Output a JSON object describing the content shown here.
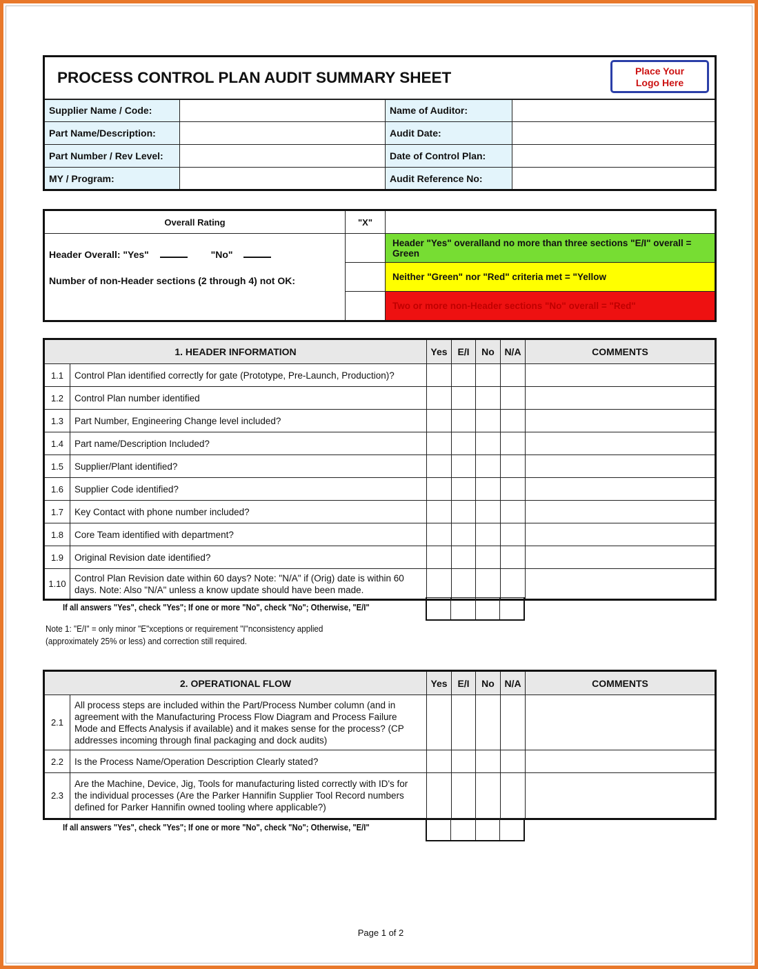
{
  "title": "PROCESS CONTROL PLAN AUDIT SUMMARY SHEET",
  "logo": "Place Your Logo Here",
  "info": [
    {
      "label": "Supplier Name / Code:",
      "value": "",
      "label2": "Name of Auditor:",
      "value2": ""
    },
    {
      "label": "Part Name/Description:",
      "value": "",
      "label2": "Audit Date:",
      "value2": ""
    },
    {
      "label": "Part Number / Rev Level:",
      "value": "",
      "label2": "Date of Control Plan:",
      "value2": ""
    },
    {
      "label": "MY / Program:",
      "value": "",
      "label2": "Audit Reference No:",
      "value2": ""
    }
  ],
  "rating": {
    "header": "Overall Rating",
    "x_header": "\"X\"",
    "header_overall": "Header Overall:  \"Yes\"",
    "no_label": "\"No\"",
    "non_header": "Number of non-Header sections (2 through 4) not OK:",
    "green": "Header \"Yes\" overalland no more than three sections \"E/I\" overall = Green",
    "yellow": "Neither \"Green\" nor \"Red\" criteria met = \"Yellow",
    "red": "Two or more non-Header sections \"No\" overall = \"Red\"",
    "colors": {
      "green": "#77dd33",
      "yellow": "#ffff00",
      "red": "#ee1111"
    }
  },
  "columns": [
    "Yes",
    "E/I",
    "No",
    "N/A",
    "COMMENTS"
  ],
  "section1": {
    "title": "1.  HEADER INFORMATION",
    "rows": [
      {
        "num": "1.1",
        "text": "Control Plan identified correctly for gate (Prototype, Pre-Launch, Production)?"
      },
      {
        "num": "1.2",
        "text": "Control Plan number identified"
      },
      {
        "num": "1.3",
        "text": "Part Number, Engineering Change level included?"
      },
      {
        "num": "1.4",
        "text": "Part name/Description Included?"
      },
      {
        "num": "1.5",
        "text": "Supplier/Plant identified?"
      },
      {
        "num": "1.6",
        "text": "Supplier Code identified?"
      },
      {
        "num": "1.7",
        "text": "Key Contact with phone number included?"
      },
      {
        "num": "1.8",
        "text": "Core Team identified with department?"
      },
      {
        "num": "1.9",
        "text": "Original Revision date identified?"
      },
      {
        "num": "1.10",
        "text": "Control Plan Revision date within 60 days?  Note: \"N/A\" if (Orig) date is within 60 days.  Note:  Also \"N/A\" unless a know update should have been made."
      }
    ],
    "footer": "If all answers \"Yes\", check \"Yes\"; If one or more \"No\", check \"No\";  Otherwise, \"E/I\""
  },
  "note": "Note 1:  \"E/I\"  =  only minor \"E\"xceptions or requirement \"I\"nconsistency applied (approximately 25% or less) and correction still required.",
  "section2": {
    "title": "2.  OPERATIONAL FLOW",
    "rows": [
      {
        "num": "2.1",
        "text": "All process steps are included within the Part/Process Number column (and in agreement with the Manufacturing Process Flow Diagram and Process Failure Mode and Effects Analysis if available) and it makes sense for the process? (CP addresses incoming through final packaging and dock audits)"
      },
      {
        "num": "2.2",
        "text": "Is the Process Name/Operation Description Clearly stated?"
      },
      {
        "num": "2.3",
        "text": "Are  the Machine, Device, Jig, Tools for manufacturing listed correctly with ID's for the individual processes (Are the Parker Hannifin Supplier Tool Record numbers defined for Parker Hannifin owned tooling where applicable?)"
      }
    ],
    "footer": "If all answers \"Yes\", check \"Yes\"; If one or more \"No\", check \"No\";  Otherwise, \"E/I\""
  },
  "page": "Page 1 of 2"
}
